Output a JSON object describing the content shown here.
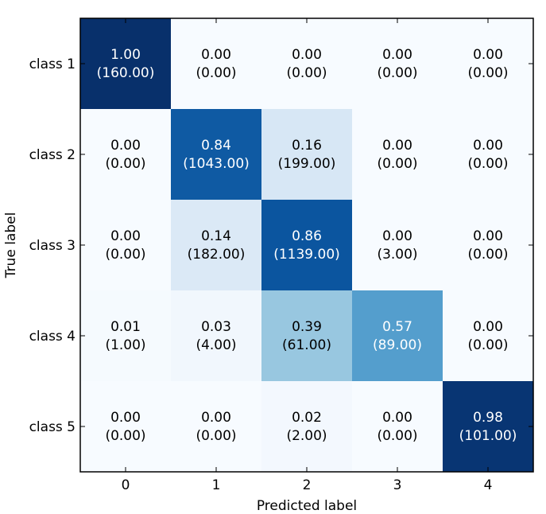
{
  "chart_data": {
    "type": "heatmap",
    "title": "",
    "xlabel": "Predicted label",
    "ylabel": "True label",
    "x_tick_labels": [
      "0",
      "1",
      "2",
      "3",
      "4"
    ],
    "y_tick_labels": [
      "class 1",
      "class 2",
      "class 3",
      "class 4",
      "class 5"
    ],
    "colormap": "Blues",
    "normalized": [
      [
        1.0,
        0.0,
        0.0,
        0.0,
        0.0
      ],
      [
        0.0,
        0.84,
        0.16,
        0.0,
        0.0
      ],
      [
        0.0,
        0.14,
        0.86,
        0.0,
        0.0
      ],
      [
        0.01,
        0.03,
        0.39,
        0.57,
        0.0
      ],
      [
        0.0,
        0.0,
        0.02,
        0.0,
        0.98
      ]
    ],
    "counts": [
      [
        160.0,
        0.0,
        0.0,
        0.0,
        0.0
      ],
      [
        0.0,
        1043.0,
        199.0,
        0.0,
        0.0
      ],
      [
        0.0,
        182.0,
        1139.0,
        3.0,
        0.0
      ],
      [
        1.0,
        4.0,
        61.0,
        89.0,
        0.0
      ],
      [
        0.0,
        0.0,
        2.0,
        0.0,
        101.0
      ]
    ],
    "cell_labels": [
      [
        [
          "1.00",
          "(160.00)"
        ],
        [
          "0.00",
          "(0.00)"
        ],
        [
          "0.00",
          "(0.00)"
        ],
        [
          "0.00",
          "(0.00)"
        ],
        [
          "0.00",
          "(0.00)"
        ]
      ],
      [
        [
          "0.00",
          "(0.00)"
        ],
        [
          "0.84",
          "(1043.00)"
        ],
        [
          "0.16",
          "(199.00)"
        ],
        [
          "0.00",
          "(0.00)"
        ],
        [
          "0.00",
          "(0.00)"
        ]
      ],
      [
        [
          "0.00",
          "(0.00)"
        ],
        [
          "0.14",
          "(182.00)"
        ],
        [
          "0.86",
          "(1139.00)"
        ],
        [
          "0.00",
          "(3.00)"
        ],
        [
          "0.00",
          "(0.00)"
        ]
      ],
      [
        [
          "0.01",
          "(1.00)"
        ],
        [
          "0.03",
          "(4.00)"
        ],
        [
          "0.39",
          "(61.00)"
        ],
        [
          "0.57",
          "(89.00)"
        ],
        [
          "0.00",
          "(0.00)"
        ]
      ],
      [
        [
          "0.00",
          "(0.00)"
        ],
        [
          "0.00",
          "(0.00)"
        ],
        [
          "0.02",
          "(2.00)"
        ],
        [
          "0.00",
          "(0.00)"
        ],
        [
          "0.98",
          "(101.00)"
        ]
      ]
    ],
    "colorbar": false,
    "grid": false
  }
}
